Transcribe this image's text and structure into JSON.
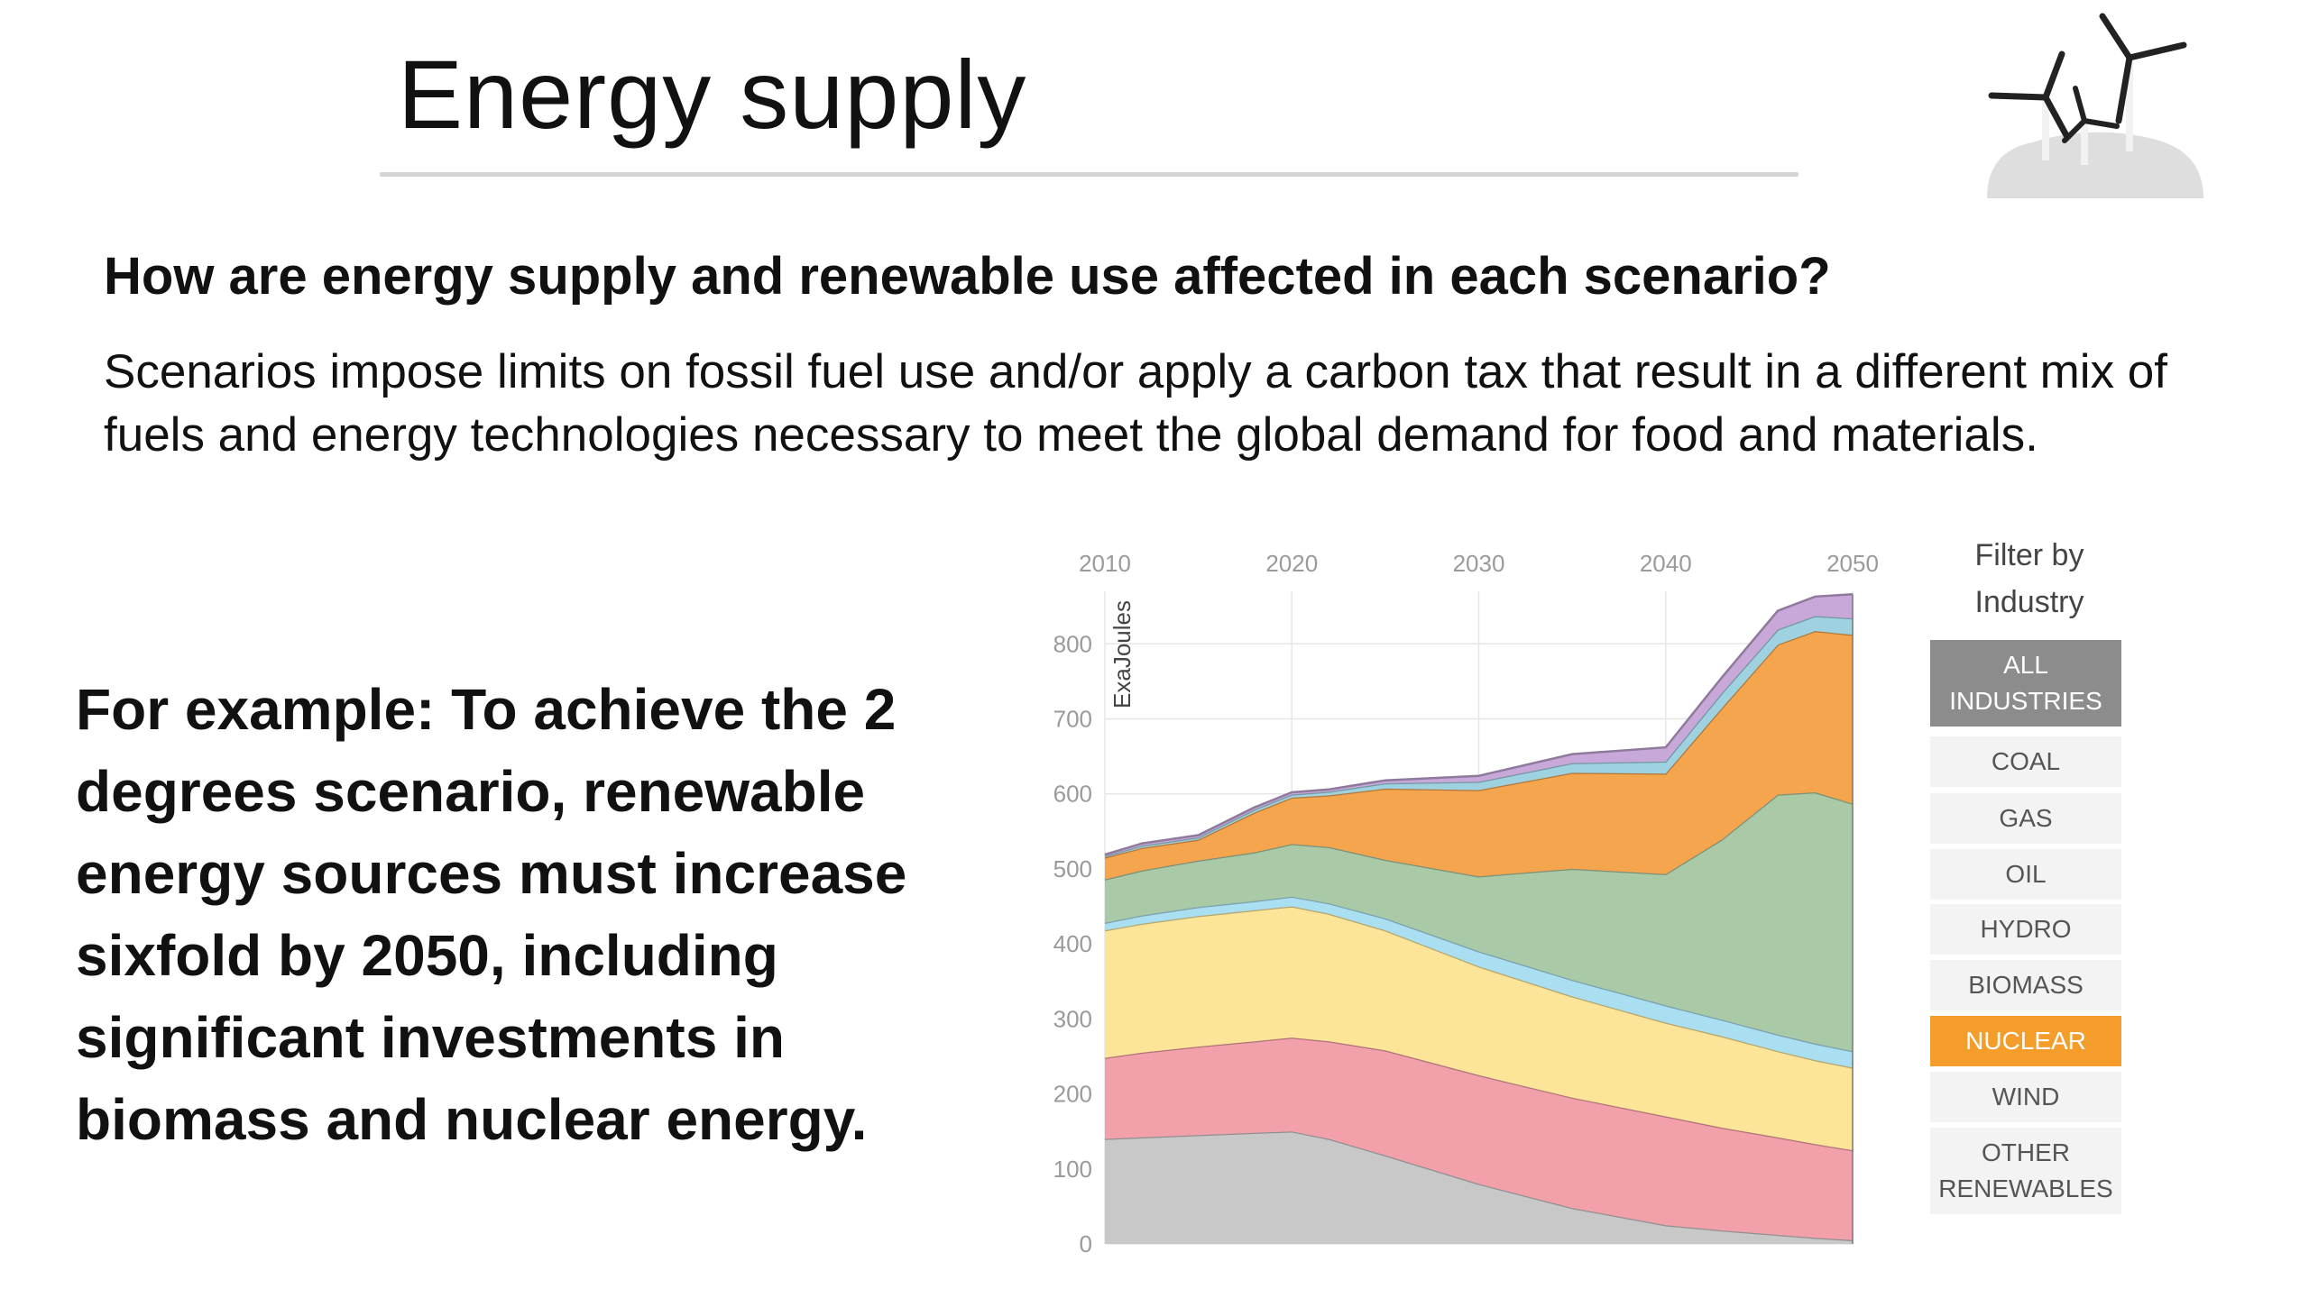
{
  "slide": {
    "title": "Energy supply",
    "question": "How are energy supply and renewable use affected in each scenario?",
    "intro": "Scenarios impose limits on fossil fuel use and/or apply a carbon tax that result in a different mix of fuels and energy technologies necessary to meet the global demand for food and materials.",
    "example": "For example: To achieve the 2 degrees scenario, renewable energy sources must increase sixfold by 2050, including significant investments in biomass and nuclear energy."
  },
  "filter": {
    "title": "Filter by Industry",
    "buttons": [
      {
        "label": "ALL INDUSTRIES",
        "state": "selected"
      },
      {
        "label": "COAL",
        "state": "normal"
      },
      {
        "label": "GAS",
        "state": "normal"
      },
      {
        "label": "OIL",
        "state": "normal"
      },
      {
        "label": "HYDRO",
        "state": "normal"
      },
      {
        "label": "BIOMASS",
        "state": "normal"
      },
      {
        "label": "NUCLEAR",
        "state": "highlighted"
      },
      {
        "label": "WIND",
        "state": "normal"
      },
      {
        "label": "OTHER RENEWABLES",
        "state": "normal"
      }
    ]
  },
  "colors": {
    "coal": "#c8c8c8",
    "gas": "#f2a0a9",
    "oil": "#fce598",
    "hydro": "#a9dff0",
    "biomass": "#a9c9a7",
    "nuclear": "#f5a54e",
    "wind": "#9fd2e0",
    "other": "#c7a8d9",
    "accent": "#f59d2a"
  },
  "chart_data": {
    "type": "area",
    "stacked": true,
    "ylabel": "ExaJoules",
    "x": [
      2010,
      2012,
      2015,
      2018,
      2020,
      2022,
      2025,
      2030,
      2035,
      2040,
      2043,
      2046,
      2048,
      2050
    ],
    "xticks": [
      "2010",
      "2020",
      "2030",
      "2040",
      "2050"
    ],
    "xtick_values": [
      2010,
      2020,
      2030,
      2040,
      2050
    ],
    "yticks": [
      "0",
      "100",
      "200",
      "300",
      "400",
      "500",
      "600",
      "700",
      "800"
    ],
    "ytick_values": [
      0,
      100,
      200,
      300,
      400,
      500,
      600,
      700,
      800
    ],
    "xlim": [
      2010,
      2050
    ],
    "ylim": [
      0,
      870
    ],
    "grid": true,
    "x_axis_position": "top",
    "series": [
      {
        "key": "coal",
        "values": [
          140,
          142,
          145,
          148,
          150,
          140,
          118,
          80,
          48,
          25,
          18,
          12,
          8,
          5
        ]
      },
      {
        "key": "gas",
        "values": [
          108,
          113,
          118,
          122,
          125,
          130,
          140,
          145,
          147,
          145,
          137,
          130,
          125,
          120
        ]
      },
      {
        "key": "oil",
        "values": [
          170,
          172,
          174,
          175,
          175,
          170,
          160,
          145,
          135,
          125,
          122,
          115,
          112,
          110
        ]
      },
      {
        "key": "hydro",
        "values": [
          10,
          11,
          12,
          12,
          13,
          14,
          16,
          20,
          22,
          23,
          22,
          22,
          22,
          22
        ]
      },
      {
        "key": "biomass",
        "values": [
          58,
          60,
          62,
          65,
          70,
          75,
          78,
          100,
          148,
          175,
          240,
          320,
          335,
          330
        ]
      },
      {
        "key": "nuclear",
        "values": [
          29,
          30,
          28,
          53,
          62,
          69,
          95,
          115,
          128,
          134,
          175,
          200,
          215,
          225
        ]
      },
      {
        "key": "wind",
        "values": [
          2,
          3,
          3,
          4,
          4,
          5,
          7,
          11,
          13,
          16,
          20,
          20,
          20,
          22
        ]
      },
      {
        "key": "other",
        "values": [
          2,
          3,
          3,
          3,
          3,
          3,
          4,
          8,
          12,
          19,
          21,
          25,
          26,
          32
        ]
      }
    ]
  }
}
